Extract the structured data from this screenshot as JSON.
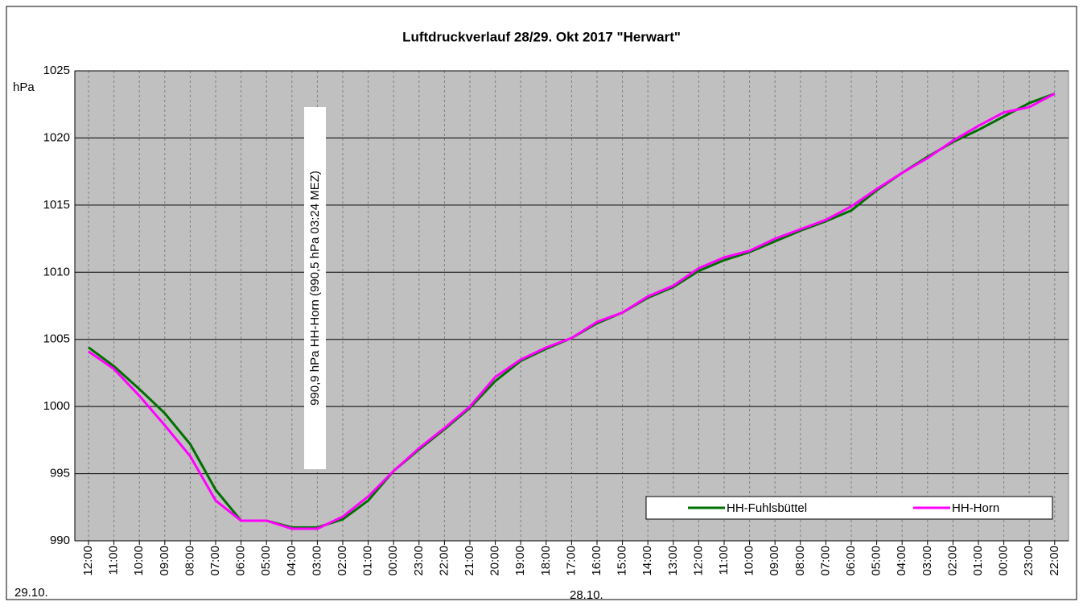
{
  "chart_data": {
    "type": "line",
    "title": "Luftdruckverlauf 28/29. Okt 2017 \"Herwart\"",
    "y_unit": "hPa",
    "date_labels": [
      "29.10.",
      "28.10."
    ],
    "annotation": "990,9 hPa HH-Horn (990,5 hPa 03:24 MEZ)",
    "categories": [
      "12:00",
      "11:00",
      "10:00",
      "09:00",
      "08:00",
      "07:00",
      "06:00",
      "05:00",
      "04:00",
      "03:00",
      "02:00",
      "01:00",
      "00:00",
      "23:00",
      "22:00",
      "21:00",
      "20:00",
      "19:00",
      "18:00",
      "17:00",
      "16:00",
      "15:00",
      "14:00",
      "13:00",
      "12:00",
      "11:00",
      "10:00",
      "09:00",
      "08:00",
      "07:00",
      "06:00",
      "05:00",
      "04:00",
      "03:00",
      "02:00",
      "01:00",
      "00:00",
      "23:00",
      "22:00"
    ],
    "series": [
      {
        "name": "HH-Fuhlsbüttel",
        "color": "#007000",
        "values": [
          1004.4,
          1003.0,
          1001.3,
          999.5,
          997.2,
          993.8,
          991.5,
          991.5,
          991.0,
          991.0,
          991.6,
          993.0,
          995.2,
          996.8,
          998.3,
          999.9,
          1001.9,
          1003.4,
          1004.3,
          1005.1,
          1006.2,
          1007.0,
          1008.1,
          1008.9,
          1010.1,
          1010.9,
          1011.5,
          1012.3,
          1013.1,
          1013.8,
          1014.6,
          1016.1,
          1017.4,
          1018.6,
          1019.7,
          1020.6,
          1021.6,
          1022.6,
          1023.3
        ]
      },
      {
        "name": "HH-Horn",
        "color": "#ff00ff",
        "values": [
          1004.1,
          1002.8,
          1000.8,
          998.6,
          996.3,
          993.0,
          991.5,
          991.5,
          990.9,
          990.9,
          991.8,
          993.3,
          995.2,
          996.9,
          998.4,
          1000.0,
          1002.2,
          1003.5,
          1004.4,
          1005.1,
          1006.3,
          1007.0,
          1008.2,
          1009.0,
          1010.3,
          1011.1,
          1011.6,
          1012.5,
          1013.2,
          1013.9,
          1014.9,
          1016.2,
          1017.4,
          1018.5,
          1019.8,
          1020.9,
          1021.9,
          1022.3,
          1023.3
        ]
      }
    ],
    "ylim": [
      990,
      1025
    ],
    "yticks": [
      990,
      995,
      1000,
      1005,
      1010,
      1015,
      1020,
      1025
    ],
    "grid": true
  }
}
